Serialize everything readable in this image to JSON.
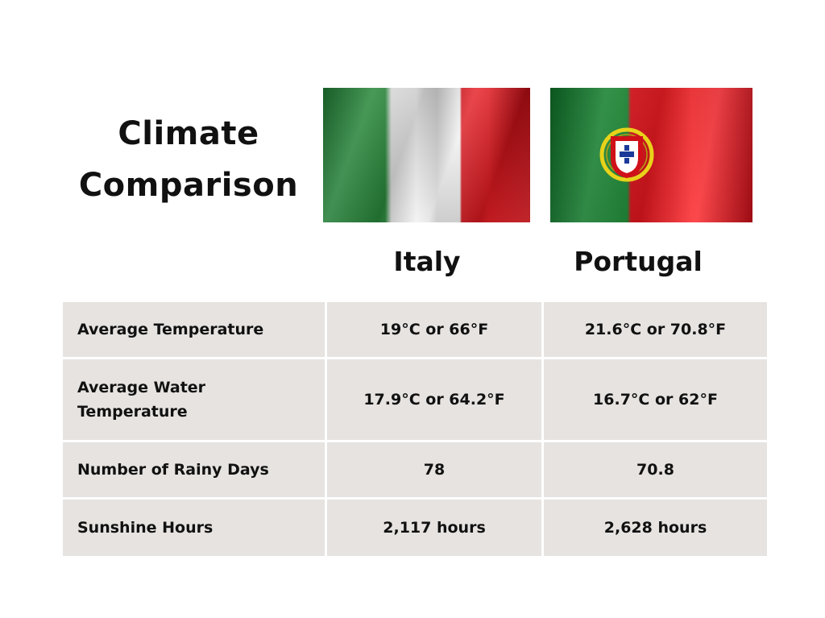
{
  "title": {
    "line1": "Climate",
    "line2": "Comparison"
  },
  "columns": [
    "Italy",
    "Portugal"
  ],
  "rows": [
    {
      "label": "Average Temperature",
      "italy": "19°C  or 66°F",
      "portugal": "21.6°C or 70.8°F"
    },
    {
      "label": "Average Water Temperature",
      "italy": "17.9°C  or 64.2°F",
      "portugal": "16.7°C  or 62°F"
    },
    {
      "label": "Number of Rainy Days",
      "italy": "78",
      "portugal": "70.8"
    },
    {
      "label": "Sunshine Hours",
      "italy": "2,117 hours",
      "portugal": "2,628 hours"
    }
  ],
  "colors": {
    "cell_bg": "#e6e3e0",
    "text": "#111111"
  }
}
